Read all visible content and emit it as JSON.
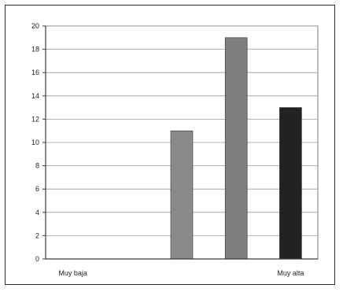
{
  "chart_data": {
    "type": "bar",
    "categories": [
      "Muy baja",
      "",
      "",
      "",
      "Muy alta"
    ],
    "values": [
      0,
      0,
      11,
      19,
      13
    ],
    "bar_colors": [
      "#8a8a8a",
      "#8a8a8a",
      "#8a8a8a",
      "#7e7e7e",
      "#222222"
    ],
    "ylim": [
      0,
      20
    ],
    "y_ticks": [
      0,
      2,
      4,
      6,
      8,
      10,
      12,
      14,
      16,
      18,
      20
    ],
    "grid": true,
    "legend": false,
    "title": "",
    "xlabel": "",
    "ylabel": ""
  }
}
